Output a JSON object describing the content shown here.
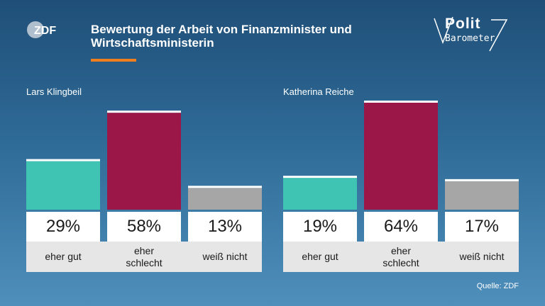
{
  "header": {
    "title": "Bewertung der Arbeit von Finanzminister und Wirtschaftsministerin",
    "logo_text": "ZDF",
    "brand_top": "Polit",
    "brand_bottom": "Barometer"
  },
  "source": "Quelle: ZDF",
  "colors": {
    "good": "#3fc3b3",
    "bad": "#9b1748",
    "unknown": "#a6a6a6",
    "accent": "#f07d1e"
  },
  "chart_data": [
    {
      "type": "bar",
      "title": "Lars Klingbeil",
      "categories": [
        "eher gut",
        "eher schlecht",
        "weiß nicht"
      ],
      "values": [
        29,
        58,
        13
      ],
      "labels": [
        "29%",
        "58%",
        "13%"
      ],
      "ylim": [
        0,
        64
      ]
    },
    {
      "type": "bar",
      "title": "Katherina Reiche",
      "categories": [
        "eher gut",
        "eher schlecht",
        "weiß nicht"
      ],
      "values": [
        19,
        64,
        17
      ],
      "labels": [
        "19%",
        "64%",
        "17%"
      ],
      "ylim": [
        0,
        64
      ]
    }
  ]
}
